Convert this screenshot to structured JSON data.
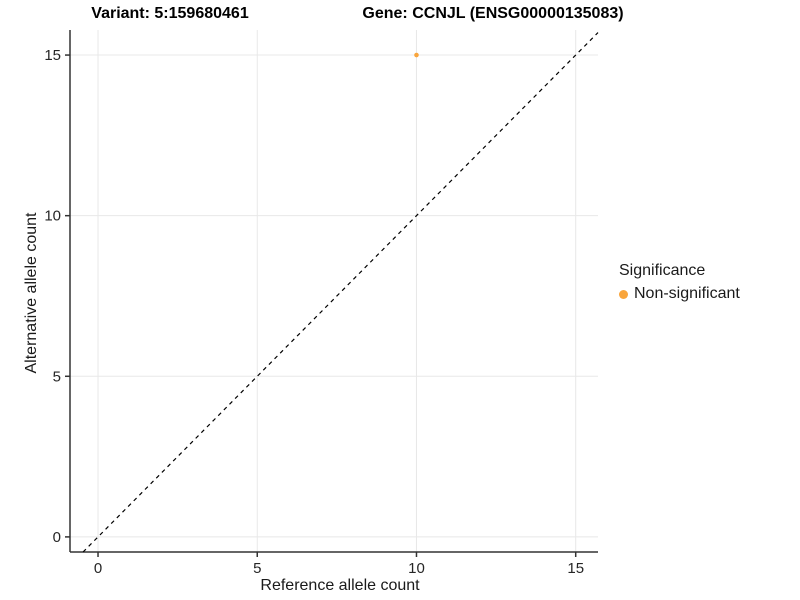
{
  "chart_data": {
    "type": "scatter",
    "title_left": "Variant: 5:159680461",
    "title_right": "Gene: CCNJL (ENSG00000135083)",
    "xlabel": "Reference allele count",
    "ylabel": "Alternative allele count",
    "x_ticks": [
      0,
      5,
      10,
      15
    ],
    "y_ticks": [
      0,
      5,
      10,
      15
    ],
    "xlim": [
      -0.88,
      15.7
    ],
    "ylim": [
      -0.47,
      15.78
    ],
    "grid": "major-only",
    "grid_color": "#e8e8e8",
    "axis_line_color": "#333333",
    "background": "#ffffff",
    "identity_line": {
      "equation": "y = x",
      "style": "dashed",
      "color": "#000000"
    },
    "series": [
      {
        "name": "Non-significant",
        "color": "#F9A53C",
        "points": [
          {
            "x": 10,
            "y": 15
          }
        ]
      }
    ],
    "legend": {
      "title": "Significance",
      "position": "right",
      "entries": [
        {
          "label": "Non-significant",
          "color": "#F9A53C"
        }
      ]
    }
  }
}
